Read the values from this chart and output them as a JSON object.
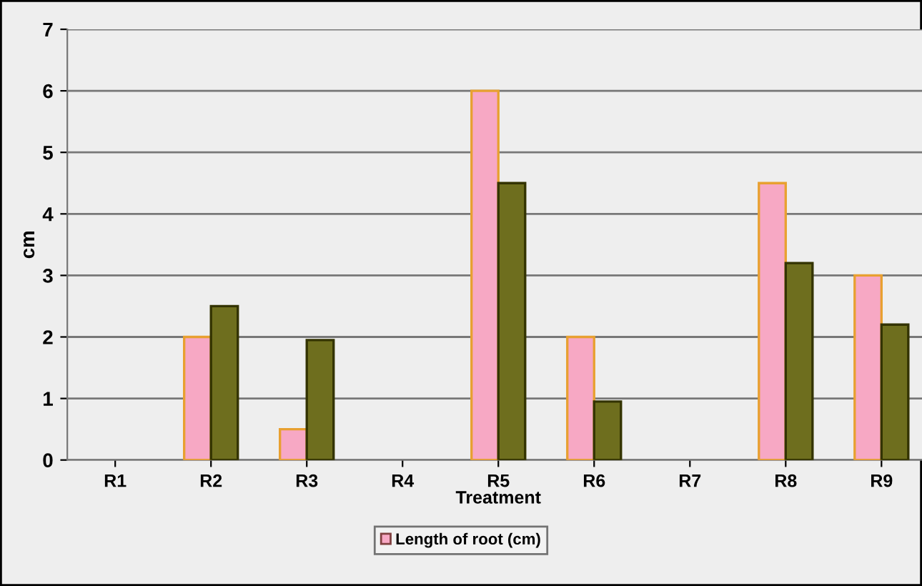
{
  "chart_data": {
    "type": "bar",
    "xlabel": "Treatment",
    "ylabel": "cm",
    "categories": [
      "R1",
      "R2",
      "R3",
      "R4",
      "R5",
      "R6",
      "R7",
      "R8",
      "R9"
    ],
    "series": [
      {
        "name": "Length of root (cm)",
        "color": "#f7a8c4",
        "values": [
          null,
          2,
          0.5,
          null,
          6,
          2,
          null,
          4.5,
          3
        ]
      },
      {
        "color": "#6e6e1e",
        "values": [
          null,
          2.5,
          1.95,
          null,
          4.5,
          0.95,
          null,
          3.2,
          2.2
        ]
      }
    ],
    "ylim": [
      0,
      7
    ],
    "yticks": [
      0,
      1,
      2,
      3,
      4,
      5,
      6,
      7
    ],
    "grid": "y",
    "legend": "bottom"
  }
}
